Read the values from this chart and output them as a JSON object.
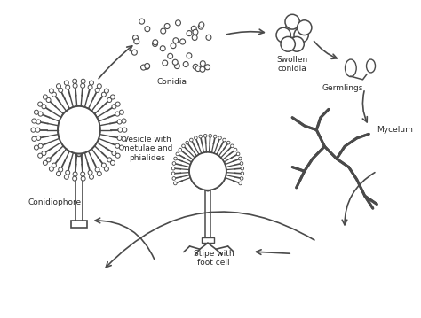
{
  "bg_color": "#ffffff",
  "line_color": "#4a4a4a",
  "text_color": "#2a2a2a",
  "labels": {
    "conidia": "Conidia",
    "swollen_conidia": "Swollen\nconidia",
    "germlings": "Germlings",
    "mycelium": "Mycelum",
    "stipe": "Stipe with\nfoot cell",
    "vesicle": "Vesicle with\nmetulae and\nphialides",
    "conidiophore": "Conidiophore"
  },
  "figsize": [
    4.74,
    3.59
  ],
  "dpi": 100
}
